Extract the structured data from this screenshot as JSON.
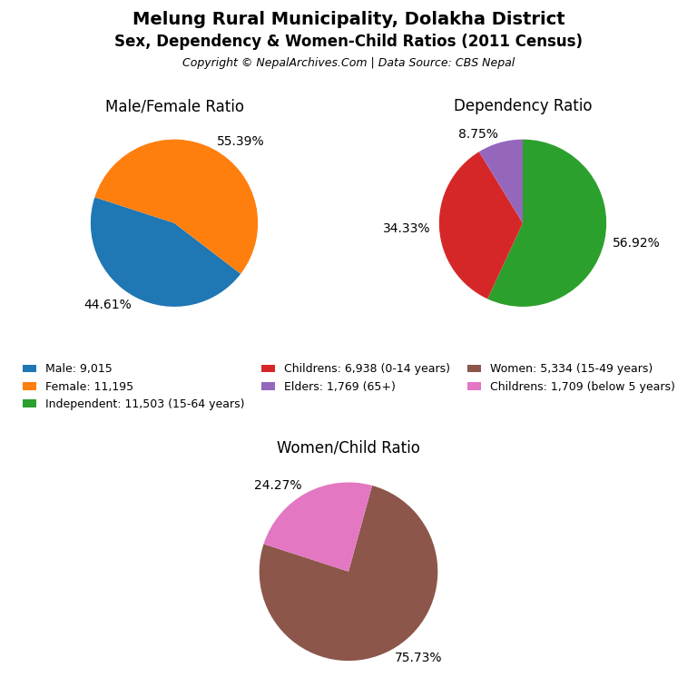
{
  "title": "Melung Rural Municipality, Dolakha District",
  "subtitle": "Sex, Dependency & Women-Child Ratios (2011 Census)",
  "annotations": [
    "Copyright © NepalArchives.Com | Data Source: CBS Nepal"
  ],
  "chart_data": [
    {
      "type": "pie",
      "title": "Male/Female Ratio",
      "categories": [
        "Male: 9,015",
        "Female: 11,195"
      ],
      "values": [
        44.61,
        55.39
      ],
      "value_labels": [
        "44.61%",
        "55.39%"
      ],
      "data_labels": true,
      "legend": "center"
    },
    {
      "type": "pie",
      "title": "Dependency Ratio",
      "categories": [
        "Independent: 11,503 (15-64 years)",
        "Childrens: 6,938 (0-14 years)",
        "Elders: 1,769 (65+)"
      ],
      "values": [
        56.92,
        34.33,
        8.75
      ],
      "value_labels": [
        "56.92%",
        "34.33%",
        "8.75%"
      ],
      "data_labels": true,
      "legend": "center"
    },
    {
      "type": "pie",
      "title": "Women/Child Ratio",
      "categories": [
        "Women: 5,334 (15-49 years)",
        "Childrens: 1,709 (below 5 years)"
      ],
      "values": [
        75.73,
        24.27
      ],
      "value_labels": [
        "75.73%",
        "24.27%"
      ],
      "data_labels": true,
      "legend": "center"
    }
  ]
}
